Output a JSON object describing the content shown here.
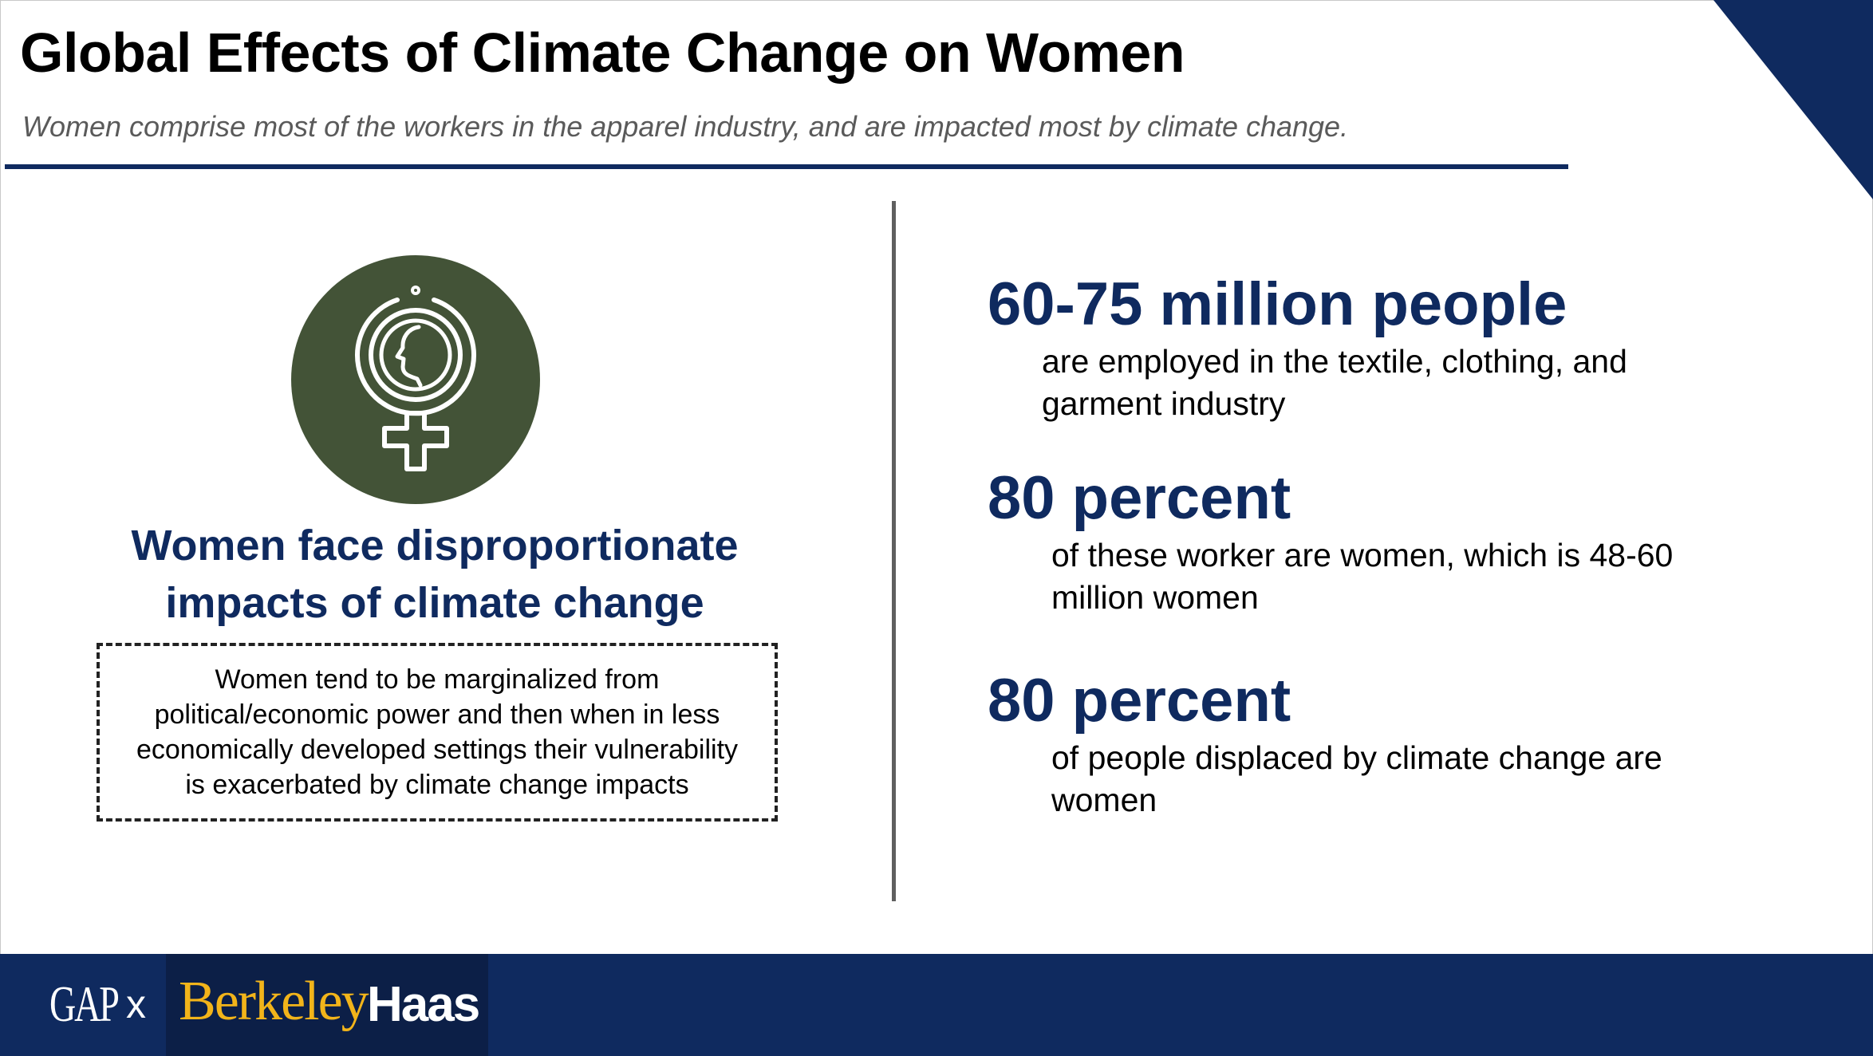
{
  "header": {
    "title": "Global Effects of Climate Change on Women",
    "subtitle": "Women comprise most of the workers in the apparel industry, and are impacted most by climate change."
  },
  "left": {
    "icon": "female-symbol-icon",
    "headline_line1": "Women face disproportionate",
    "headline_line2": "impacts of climate change",
    "note_lines": [
      "Women tend to be marginalized from",
      "political/economic power and then when in less",
      "economically developed settings their vulnerability",
      "is exacerbated by climate change impacts"
    ]
  },
  "stats": [
    {
      "value": "60-75 million people",
      "desc_lines": [
        "are employed in the textile, clothing, and",
        "garment industry"
      ]
    },
    {
      "value": "80 percent",
      "desc_lines": [
        "of these worker are women, which is 48-60",
        "million women"
      ]
    },
    {
      "value": "80 percent",
      "desc_lines": [
        "of people displaced by climate change are",
        "women"
      ]
    }
  ],
  "footer": {
    "brand_gap": "GAP",
    "separator": "x",
    "brand_berkeley": "Berkeley",
    "brand_haas": "Haas"
  },
  "colors": {
    "navy": "#0f2a5f",
    "icon_green": "#435337",
    "gold": "#f2b41a"
  }
}
